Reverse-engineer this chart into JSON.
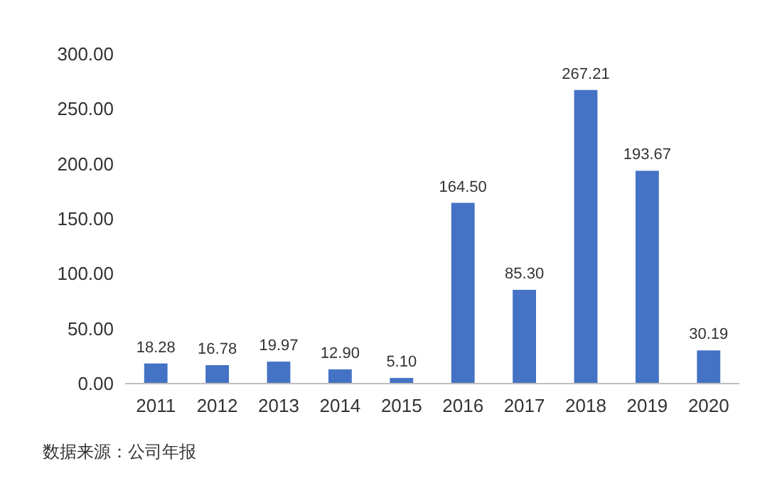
{
  "chart_data": {
    "type": "bar",
    "categories": [
      "2011",
      "2012",
      "2013",
      "2014",
      "2015",
      "2016",
      "2017",
      "2018",
      "2019",
      "2020"
    ],
    "values": [
      18.28,
      16.78,
      19.97,
      12.9,
      5.1,
      164.5,
      85.3,
      267.21,
      193.67,
      30.19
    ],
    "value_labels": [
      "18.28",
      "16.78",
      "19.97",
      "12.90",
      "5.10",
      "164.50",
      "85.30",
      "267.21",
      "193.67",
      "30.19"
    ],
    "color": "#4472c4",
    "ylim": [
      0,
      300
    ],
    "yticks": [
      {
        "value": 0,
        "label": "0.00"
      },
      {
        "value": 50,
        "label": "50.00"
      },
      {
        "value": 100,
        "label": "100.00"
      },
      {
        "value": 150,
        "label": "150.00"
      },
      {
        "value": 200,
        "label": "200.00"
      },
      {
        "value": 250,
        "label": "250.00"
      },
      {
        "value": 300,
        "label": "300.00"
      }
    ],
    "grid": false,
    "annotations": [
      "数据来源：公司年报"
    ]
  }
}
